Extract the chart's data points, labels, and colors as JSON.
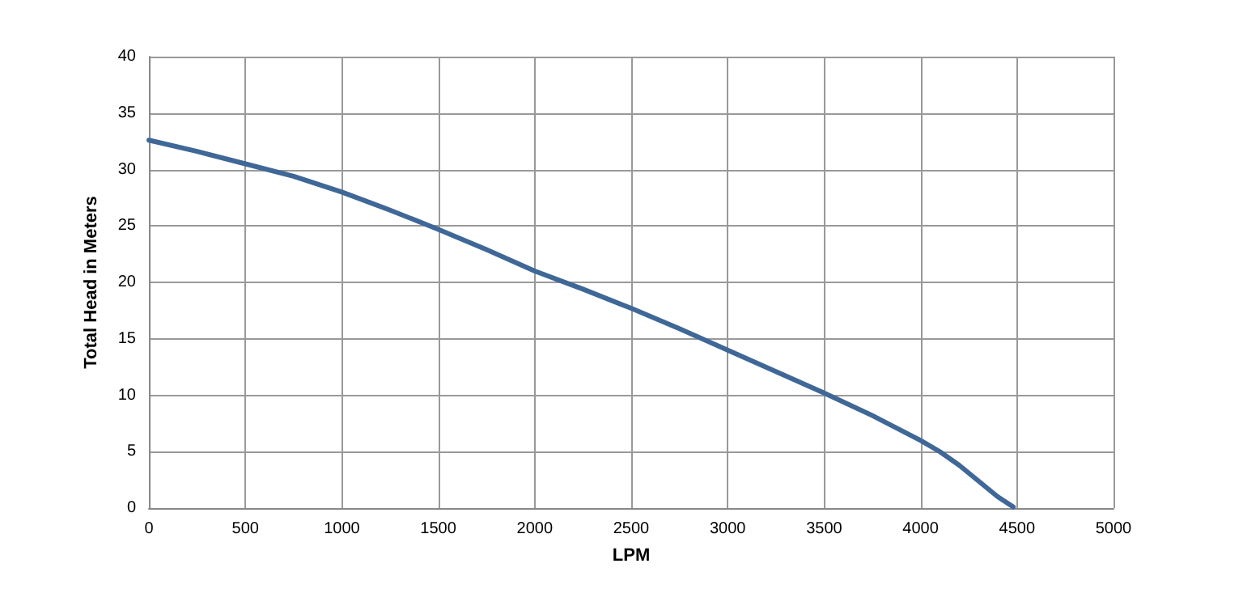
{
  "chart_data": {
    "type": "line",
    "xlabel": "LPM",
    "ylabel": "Total Head in Meters",
    "x": [
      0,
      250,
      500,
      750,
      1000,
      1250,
      1500,
      1750,
      2000,
      2250,
      2500,
      2750,
      3000,
      3250,
      3500,
      3750,
      4000,
      4100,
      4200,
      4300,
      4400,
      4480
    ],
    "series": [
      {
        "color": "#3f6797",
        "values": [
          32.6,
          31.6,
          30.5,
          29.4,
          28,
          26.4,
          24.7,
          22.9,
          21,
          19.4,
          17.7,
          15.9,
          14,
          12.1,
          10.2,
          8.2,
          6,
          5,
          3.8,
          2.4,
          1,
          0.1
        ]
      }
    ],
    "xlim": [
      0,
      5000
    ],
    "xticks": [
      0,
      500,
      1000,
      1500,
      2000,
      2500,
      3000,
      3500,
      4000,
      4500,
      5000
    ],
    "ylim": [
      0,
      40
    ],
    "yticks": [
      0,
      5,
      10,
      15,
      20,
      25,
      30,
      35,
      40
    ],
    "grid": true,
    "marker": "none",
    "line_style": "solid"
  }
}
